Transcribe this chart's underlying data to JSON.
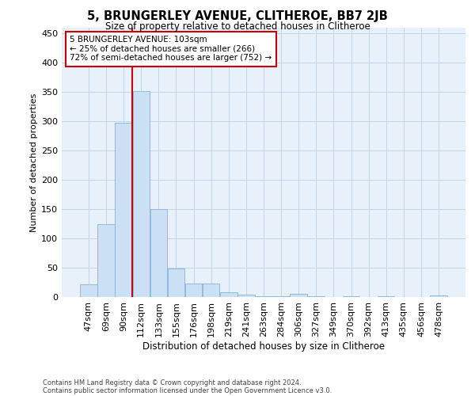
{
  "title": "5, BRUNGERLEY AVENUE, CLITHEROE, BB7 2JB",
  "subtitle": "Size of property relative to detached houses in Clitheroe",
  "xlabel": "Distribution of detached houses by size in Clitheroe",
  "ylabel": "Number of detached properties",
  "bar_labels": [
    "47sqm",
    "69sqm",
    "90sqm",
    "112sqm",
    "133sqm",
    "155sqm",
    "176sqm",
    "198sqm",
    "219sqm",
    "241sqm",
    "263sqm",
    "284sqm",
    "306sqm",
    "327sqm",
    "349sqm",
    "370sqm",
    "392sqm",
    "413sqm",
    "435sqm",
    "456sqm",
    "478sqm"
  ],
  "bar_values": [
    22,
    125,
    297,
    352,
    150,
    49,
    23,
    23,
    8,
    4,
    1,
    1,
    5,
    1,
    0,
    1,
    0,
    1,
    0,
    0,
    3
  ],
  "bar_color": "#cce0f5",
  "bar_edge_color": "#85b4d9",
  "grid_color": "#c0d4ea",
  "bg_color": "#e8f0fa",
  "vline_color": "#cc0000",
  "vline_x_index": 3,
  "annotation_text": "5 BRUNGERLEY AVENUE: 103sqm\n← 25% of detached houses are smaller (266)\n72% of semi-detached houses are larger (752) →",
  "annotation_box_facecolor": "#ffffff",
  "annotation_box_edgecolor": "#cc0000",
  "footer1": "Contains HM Land Registry data © Crown copyright and database right 2024.",
  "footer2": "Contains public sector information licensed under the Open Government Licence v3.0.",
  "ylim": [
    0,
    460
  ],
  "yticks": [
    0,
    50,
    100,
    150,
    200,
    250,
    300,
    350,
    400,
    450
  ],
  "title_fontsize": 10.5,
  "subtitle_fontsize": 8.5,
  "xlabel_fontsize": 8.5,
  "ylabel_fontsize": 8,
  "tick_fontsize": 8,
  "annotation_fontsize": 7.5,
  "footer_fontsize": 6
}
